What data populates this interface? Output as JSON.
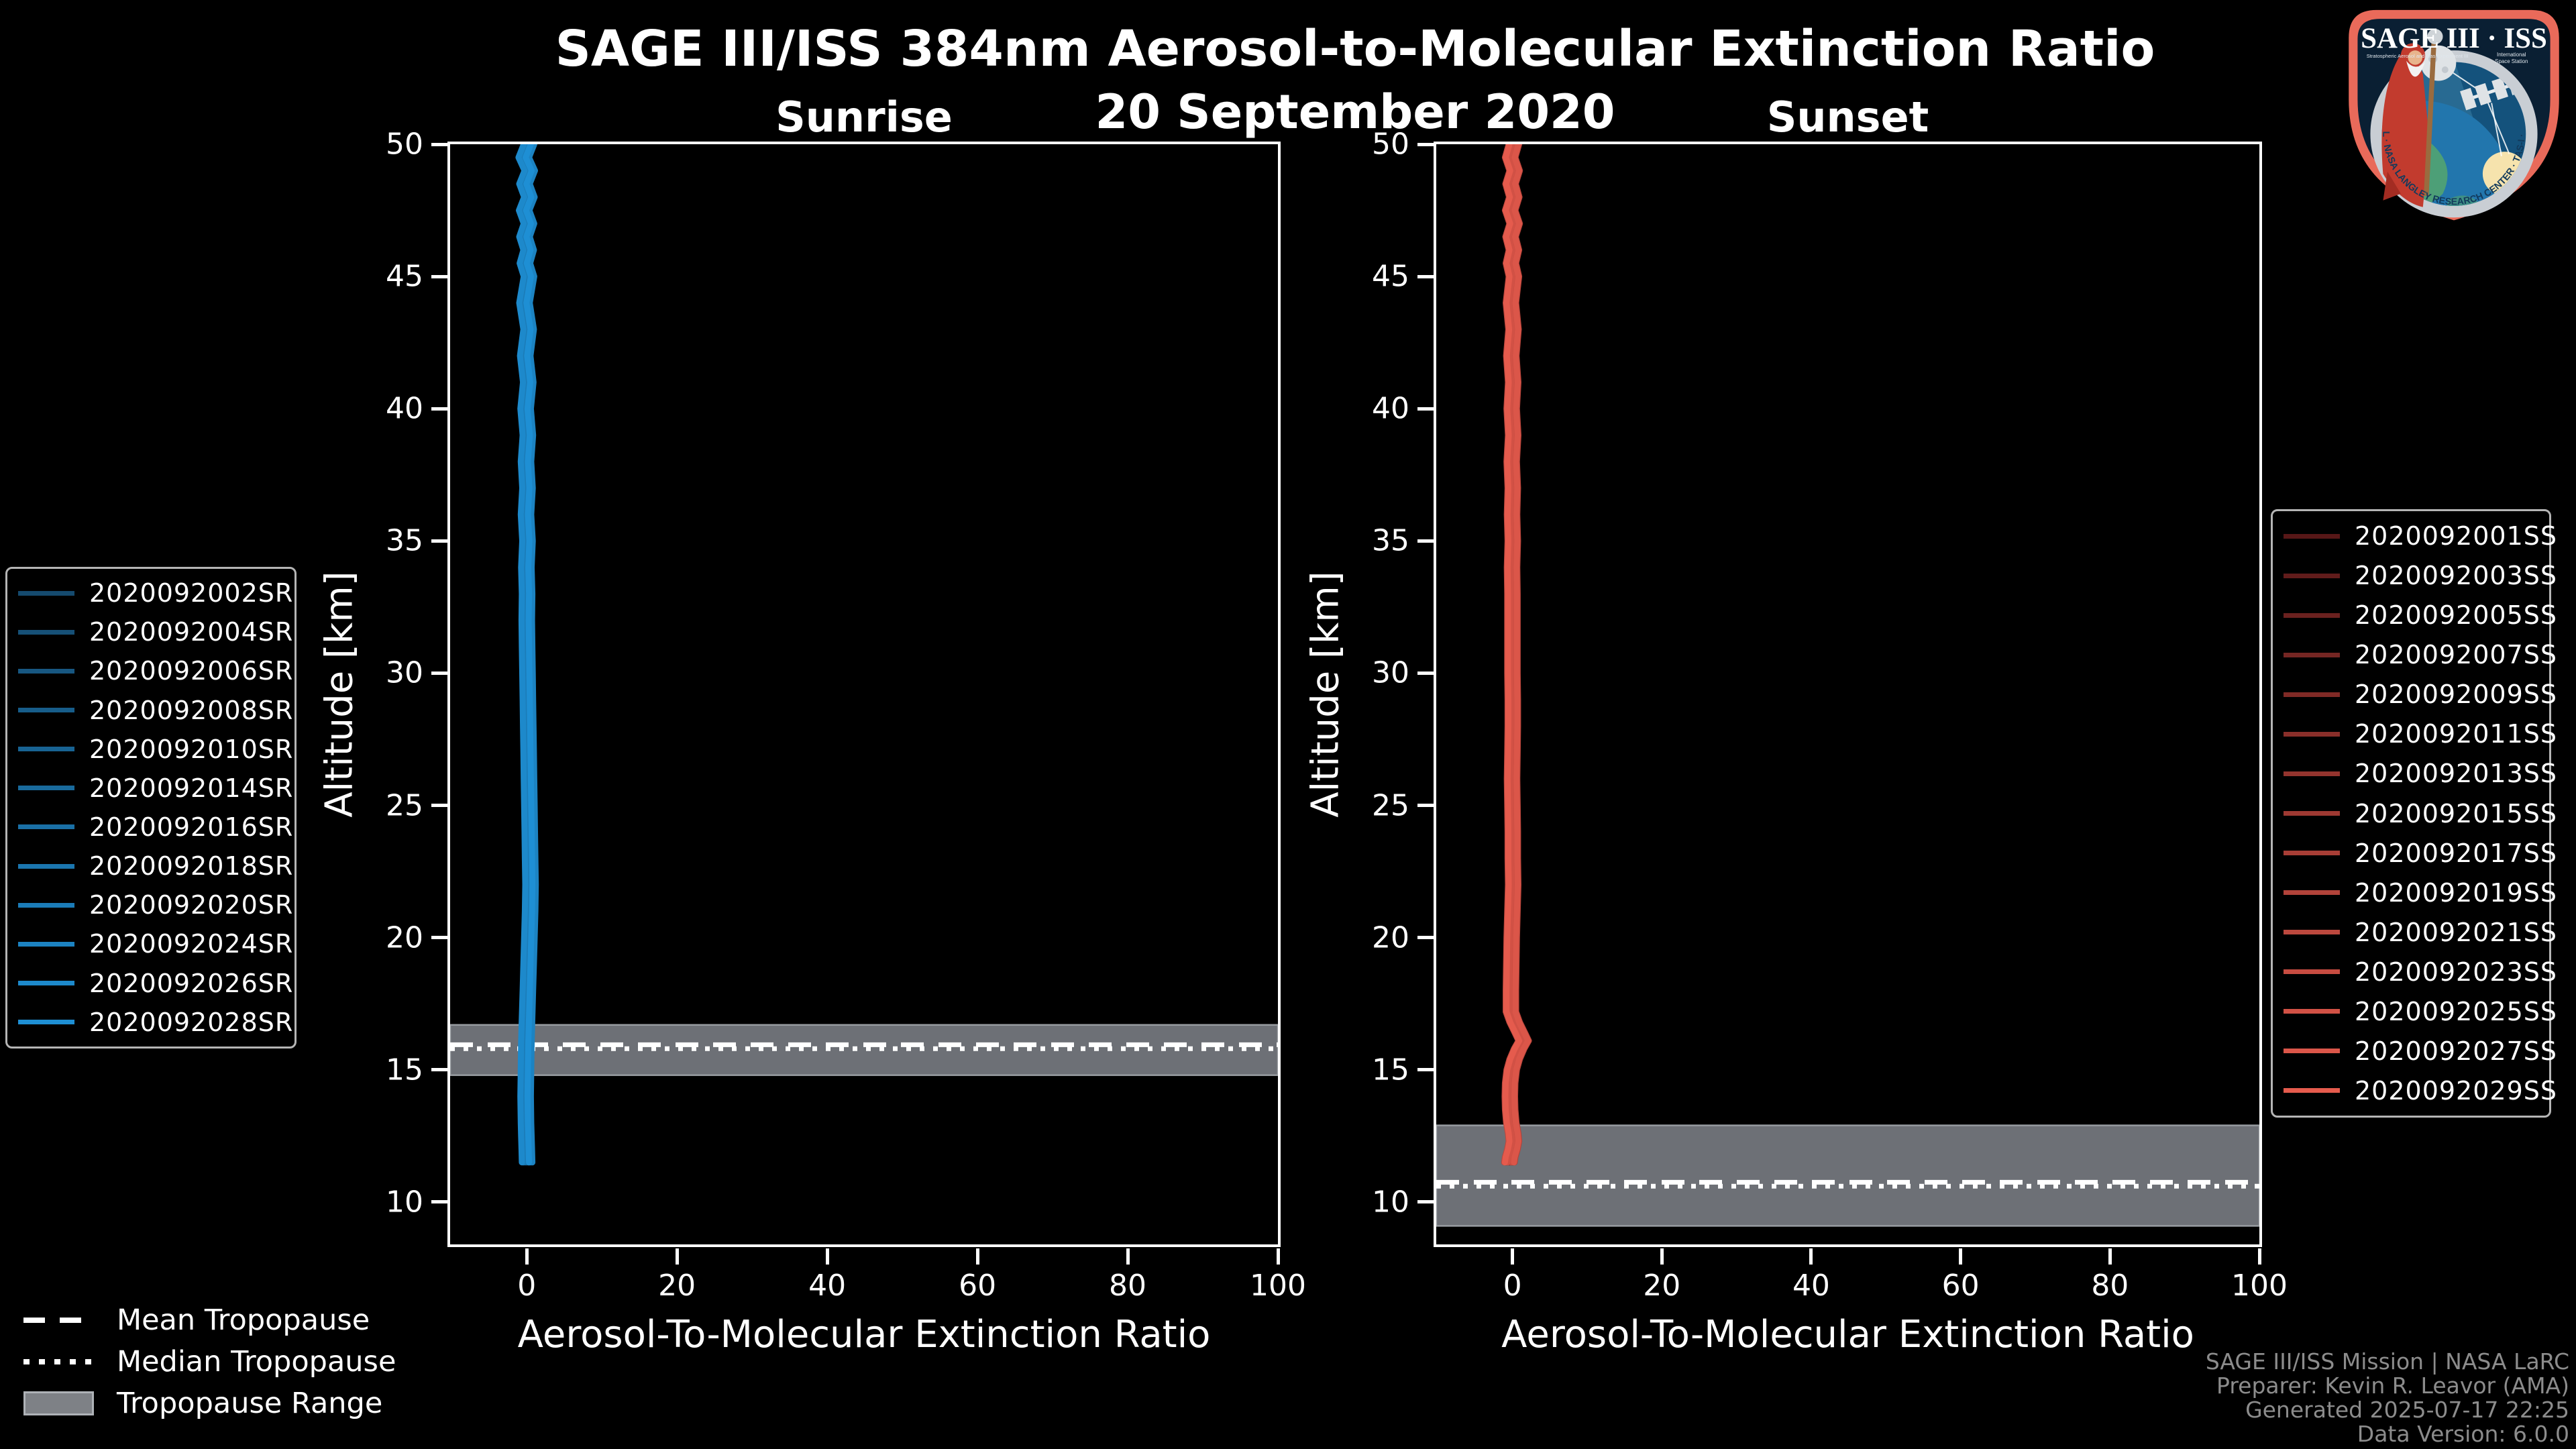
{
  "header": {
    "title": "SAGE III/ISS 384nm Aerosol-to-Molecular Extinction Ratio",
    "subtitle": "20 September 2020"
  },
  "colors": {
    "background": "#000000",
    "text": "#ffffff",
    "muted_text": "#8c8c8c",
    "spine": "#ffffff",
    "tropopause_band": "#6d7076",
    "tropopause_band_edge": "#989ca1",
    "legend_border": "#b5b5b5",
    "sunrise_accent": "#1e8fd4",
    "sunset_accent": "#e55b4d"
  },
  "tropopause_legend": {
    "items": [
      {
        "label": "Mean Tropopause",
        "style": "dashed"
      },
      {
        "label": "Median Tropopause",
        "style": "dotted"
      },
      {
        "label": "Tropopause Range",
        "style": "band"
      }
    ]
  },
  "attribution": {
    "lines": [
      "SAGE III/ISS Mission | NASA LaRC",
      "Preparer: Kevin R. Leavor (AMA)",
      "Generated 2025-07-17 22:25",
      "Data Version: 6.0.0"
    ]
  },
  "logo": {
    "name": "SAGE III ISS mission patch",
    "line1": "SAGE III · ISS",
    "sub1": "Stratospheric Aerosol and Gas Experiment III",
    "sub2": "International",
    "sub3": "Space Station",
    "ring_text": "BALL · NASA LANGLEY RESEARCH CENTER · TAS-I · ESA",
    "border_color": "#e96a5a",
    "ring_color": "#c9ced4",
    "sky_color": "#14527c"
  },
  "chart_data": [
    {
      "type": "line",
      "title": "Sunrise",
      "xlabel": "Aerosol-To-Molecular Extinction Ratio",
      "ylabel": "Altitude [km]",
      "xlim": [
        -10.2,
        100
      ],
      "ylim": [
        8.4,
        50
      ],
      "xticks": [
        0,
        20,
        40,
        60,
        80,
        100
      ],
      "yticks": [
        10,
        15,
        20,
        25,
        30,
        35,
        40,
        45,
        50
      ],
      "grid": false,
      "legend_position": "outside-left",
      "series": [
        {
          "label": "2020092002SR",
          "color": "#154a6e"
        },
        {
          "label": "2020092004SR",
          "color": "#165077"
        },
        {
          "label": "2020092006SR",
          "color": "#175781"
        },
        {
          "label": "2020092008SR",
          "color": "#175d8a"
        },
        {
          "label": "2020092010SR",
          "color": "#186393"
        },
        {
          "label": "2020092014SR",
          "color": "#196a9c"
        },
        {
          "label": "2020092016SR",
          "color": "#1a70a6"
        },
        {
          "label": "2020092018SR",
          "color": "#1b76af"
        },
        {
          "label": "2020092020SR",
          "color": "#1b7cb8"
        },
        {
          "label": "2020092024SR",
          "color": "#1c83c2"
        },
        {
          "label": "2020092026SR",
          "color": "#1d89cb"
        },
        {
          "label": "2020092028SR",
          "color": "#1e8fd4"
        }
      ],
      "profile_note": "All events overlap near ratio 0 from ~11.5 km to 50 km",
      "base_profile": {
        "altitude": [
          50.3,
          50,
          49.5,
          49,
          48.5,
          48,
          47.5,
          47,
          46.5,
          46,
          45.5,
          45,
          44,
          43,
          42,
          41,
          40,
          39,
          38,
          37,
          36,
          35,
          34,
          33,
          32,
          31,
          30,
          29,
          28,
          27,
          26,
          25,
          24,
          23,
          22,
          21,
          20,
          19,
          18,
          17,
          16,
          15,
          14,
          13,
          12.5,
          12,
          11.5
        ],
        "ratio": [
          0.2,
          0.3,
          -0.4,
          0.4,
          -0.3,
          0.35,
          -0.35,
          0.3,
          -0.3,
          0.25,
          -0.25,
          0.3,
          -0.3,
          0.25,
          -0.2,
          0.2,
          -0.15,
          0.15,
          -0.1,
          0.1,
          -0.1,
          0.1,
          -0.05,
          0.05,
          0,
          0.05,
          0.1,
          0.15,
          0.2,
          0.25,
          0.3,
          0.35,
          0.4,
          0.45,
          0.5,
          0.45,
          0.35,
          0.25,
          0.15,
          0.05,
          -0.05,
          -0.1,
          -0.15,
          -0.1,
          -0.05,
          0,
          0.05
        ]
      },
      "tropopause": {
        "mean_km": 15.95,
        "median_km": 15.8,
        "range_km": [
          14.8,
          16.7
        ]
      }
    },
    {
      "type": "line",
      "title": "Sunset",
      "xlabel": "Aerosol-To-Molecular Extinction Ratio",
      "ylabel": "Altitude [km]",
      "xlim": [
        -10.2,
        100
      ],
      "ylim": [
        8.4,
        50
      ],
      "xticks": [
        0,
        20,
        40,
        60,
        80,
        100
      ],
      "yticks": [
        10,
        15,
        20,
        25,
        30,
        35,
        40,
        45,
        50
      ],
      "grid": false,
      "legend_position": "outside-right",
      "series": [
        {
          "label": "2020092001SS",
          "color": "#571717"
        },
        {
          "label": "2020092003SS",
          "color": "#611c1b"
        },
        {
          "label": "2020092005SS",
          "color": "#6b211f"
        },
        {
          "label": "2020092007SS",
          "color": "#752623"
        },
        {
          "label": "2020092009SS",
          "color": "#802a26"
        },
        {
          "label": "2020092011SS",
          "color": "#8a2f2a"
        },
        {
          "label": "2020092013SS",
          "color": "#94342e"
        },
        {
          "label": "2020092015SS",
          "color": "#9e3932"
        },
        {
          "label": "2020092017SS",
          "color": "#a83e36"
        },
        {
          "label": "2020092019SS",
          "color": "#b2433a"
        },
        {
          "label": "2020092021SS",
          "color": "#bc483e"
        },
        {
          "label": "2020092023SS",
          "color": "#c74c41"
        },
        {
          "label": "2020092025SS",
          "color": "#d15145"
        },
        {
          "label": "2020092027SS",
          "color": "#db5649"
        },
        {
          "label": "2020092029SS",
          "color": "#e55b4d"
        }
      ],
      "profile_note": "All events overlap near ratio 0 from ~11.5 km to 50 km with small bump (~1.5) near 16.1 km",
      "base_profile": {
        "altitude": [
          50.3,
          50,
          49.5,
          49,
          48.5,
          48,
          47.5,
          47,
          46.5,
          46,
          45.5,
          45,
          44,
          43,
          42,
          41,
          40,
          39,
          38,
          37,
          36,
          35,
          34,
          33,
          32,
          31,
          30,
          29,
          28,
          27,
          26,
          25,
          24,
          23,
          22,
          21,
          20,
          19,
          18,
          17.2,
          16.8,
          16.4,
          16.1,
          15.8,
          15.4,
          15,
          14.5,
          14,
          13.5,
          13,
          12.6,
          12.3,
          12,
          11.7,
          11.5
        ],
        "ratio": [
          0.1,
          0.2,
          -0.3,
          0.3,
          -0.25,
          0.25,
          -0.3,
          0.3,
          -0.25,
          0.2,
          -0.2,
          0.2,
          -0.2,
          0.15,
          -0.15,
          0.1,
          -0.1,
          0.1,
          -0.1,
          0.05,
          -0.05,
          0.05,
          -0.05,
          0,
          0,
          0,
          0,
          0.05,
          0.05,
          0,
          -0.05,
          0,
          0.05,
          0.05,
          0.1,
          0,
          -0.1,
          -0.15,
          -0.2,
          -0.2,
          0.3,
          1.0,
          1.5,
          0.9,
          0.3,
          -0.1,
          -0.3,
          -0.35,
          -0.3,
          -0.15,
          0.1,
          0.2,
          0,
          -0.3,
          -0.4
        ]
      },
      "tropopause": {
        "mean_km": 10.75,
        "median_km": 10.6,
        "range_km": [
          9.1,
          12.9
        ]
      }
    }
  ]
}
